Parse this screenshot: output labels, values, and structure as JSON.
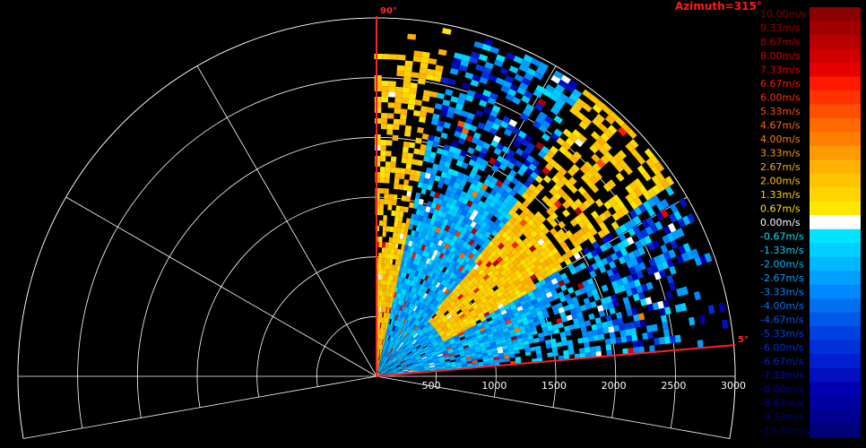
{
  "chart_data": {
    "type": "heatmap",
    "projection": "polar-sector (RHI-style radial velocity scan)",
    "title": "Azimuth=315°",
    "sector": {
      "start_label": "90°",
      "end_label": "5°",
      "start_deg": 90,
      "end_deg": 5
    },
    "range_axis": {
      "ticks": [
        "500",
        "1000",
        "1500",
        "2000",
        "2500",
        "3000"
      ],
      "tick_values": [
        500,
        1000,
        1500,
        2000,
        2500,
        3000
      ],
      "max_range": 3000
    },
    "colorbar": {
      "labels": [
        "10.00m/s",
        "9.33m/s",
        "8.67m/s",
        "8.00m/s",
        "7.33m/s",
        "6.67m/s",
        "6.00m/s",
        "5.33m/s",
        "4.67m/s",
        "4.00m/s",
        "3.33m/s",
        "2.67m/s",
        "2.00m/s",
        "1.33m/s",
        "0.67m/s",
        "0.00m/s",
        "-0.67m/s",
        "-1.33m/s",
        "-2.00m/s",
        "-2.67m/s",
        "-3.33m/s",
        "-4.00m/s",
        "-4.67m/s",
        "-5.33m/s",
        "-6.00m/s",
        "-6.67m/s",
        "-7.33m/s",
        "-8.00m/s",
        "-8.67m/s",
        "-9.33m/s",
        "-10.00m/s"
      ],
      "colors": [
        "#8b0000",
        "#a00000",
        "#b80000",
        "#d00000",
        "#e60000",
        "#ff1a00",
        "#ff3300",
        "#ff5000",
        "#ff6a00",
        "#ff8000",
        "#ff9a00",
        "#ffb000",
        "#ffc400",
        "#ffd400",
        "#ffe800",
        "#ffffff",
        "#00e5ff",
        "#00cfff",
        "#00b8ff",
        "#00a0ff",
        "#0088ff",
        "#0070f0",
        "#0058e8",
        "#0040e0",
        "#0030d8",
        "#0020d0",
        "#0010c0",
        "#0000b0",
        "#0000a0",
        "#000090",
        "#000078"
      ],
      "min": -10,
      "max": 10,
      "step": 0.667,
      "unit": "m/s"
    },
    "colors": {
      "grid": "#ffffff",
      "sector_edge": "#ff2020",
      "background": "#000000"
    }
  }
}
